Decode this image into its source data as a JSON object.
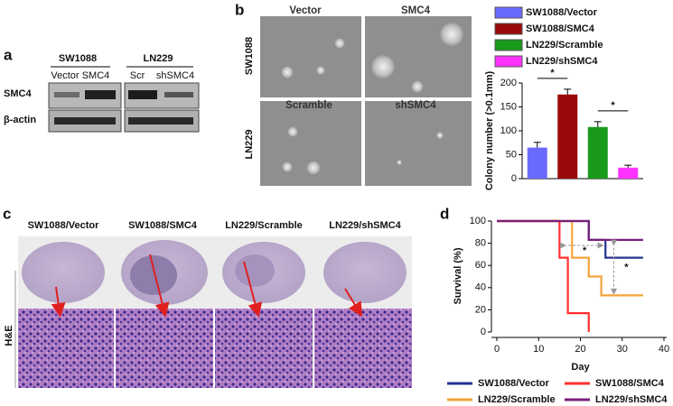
{
  "panel_labels": [
    "a",
    "b",
    "c",
    "d"
  ],
  "panel_a": {
    "groups": [
      "SW1088",
      "LN229"
    ],
    "lanes": [
      "Vector",
      "SMC4",
      "Scr",
      "shSMC4"
    ],
    "rows": [
      "SMC4",
      "β-actin"
    ]
  },
  "panel_b": {
    "columns_top": [
      "Vector",
      "SMC4"
    ],
    "columns_bottom": [
      "Scramble",
      "shSMC4"
    ],
    "rows": [
      "SW1088",
      "LN229"
    ]
  },
  "panel_c": {
    "columns": [
      "SW1088/Vector",
      "SW1088/SMC4",
      "LN229/Scramble",
      "LN229/shSMC4"
    ],
    "row_label": "H&E"
  },
  "chart_data": [
    {
      "type": "bar",
      "ylabel": "Colony number (>0.1mm)",
      "ylim": [
        0,
        200
      ],
      "yticks": [
        0,
        50,
        100,
        150,
        200
      ],
      "series": [
        {
          "name": "SW1088/Vector",
          "color": "#6a6aff",
          "values": [
            65
          ],
          "errors": [
            11
          ]
        },
        {
          "name": "SW1088/SMC4",
          "color": "#9b0a0a",
          "values": [
            176
          ],
          "errors": [
            11
          ]
        },
        {
          "name": "LN229/Scramble",
          "color": "#1a9a1a",
          "values": [
            108
          ],
          "errors": [
            11
          ]
        },
        {
          "name": "LN229/shSMC4",
          "color": "#ff33ff",
          "values": [
            23
          ],
          "errors": [
            5
          ]
        }
      ],
      "annotations": [
        "*",
        "*"
      ]
    },
    {
      "type": "line",
      "xlabel": "Day",
      "ylabel": "Survival (%)",
      "xlim": [
        0,
        40
      ],
      "ylim": [
        0,
        100
      ],
      "xticks": [
        0,
        10,
        20,
        30,
        40
      ],
      "yticks": [
        0,
        20,
        40,
        60,
        80,
        100
      ],
      "series": [
        {
          "name": "SW1088/Vector",
          "color": "#27328f",
          "x": [
            0,
            22,
            22,
            26,
            26,
            35
          ],
          "values": [
            100,
            100,
            83,
            83,
            67,
            67
          ]
        },
        {
          "name": "SW1088/SMC4",
          "color": "#ff3030",
          "x": [
            0,
            15,
            15,
            17,
            17,
            22,
            22
          ],
          "values": [
            100,
            100,
            67,
            67,
            17,
            17,
            0
          ]
        },
        {
          "name": "LN229/Scramble",
          "color": "#f4a43a",
          "x": [
            0,
            18,
            18,
            22,
            22,
            25,
            25,
            35
          ],
          "values": [
            100,
            100,
            67,
            67,
            50,
            50,
            33,
            33
          ]
        },
        {
          "name": "LN229/shSMC4",
          "color": "#7a1f7a",
          "x": [
            0,
            22,
            22,
            35
          ],
          "values": [
            100,
            100,
            83,
            83
          ]
        }
      ],
      "annotations": [
        "*",
        "*"
      ]
    }
  ]
}
